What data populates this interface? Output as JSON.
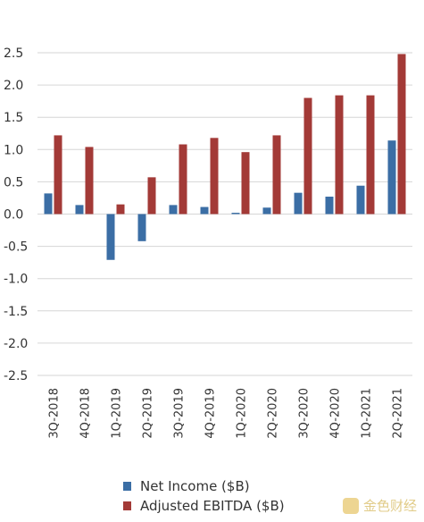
{
  "chart_data": {
    "type": "bar",
    "categories": [
      "3Q-2018",
      "4Q-2018",
      "1Q-2019",
      "2Q-2019",
      "3Q-2019",
      "4Q-2019",
      "1Q-2020",
      "2Q-2020",
      "3Q-2020",
      "4Q-2020",
      "1Q-2021",
      "2Q-2021"
    ],
    "series": [
      {
        "name": "Net Income ($B)",
        "color": "#3b6ea5",
        "values": [
          0.32,
          0.14,
          -0.71,
          -0.42,
          0.14,
          0.11,
          0.02,
          0.1,
          0.33,
          0.27,
          0.44,
          1.14
        ]
      },
      {
        "name": "Adjusted EBITDA ($B)",
        "color": "#a33a37",
        "values": [
          1.22,
          1.04,
          0.15,
          0.57,
          1.08,
          1.18,
          0.96,
          1.22,
          1.8,
          1.84,
          1.84,
          2.48
        ]
      }
    ],
    "yticks": [
      "2.5",
      "2.0",
      "1.5",
      "1.0",
      "0.5",
      "0.0",
      "-0.5",
      "-1.0",
      "-1.5",
      "-2.0",
      "-2.5"
    ],
    "ylim": [
      -2.5,
      2.5
    ],
    "grid": true,
    "legend": "bottom"
  },
  "watermark": "金色财经"
}
